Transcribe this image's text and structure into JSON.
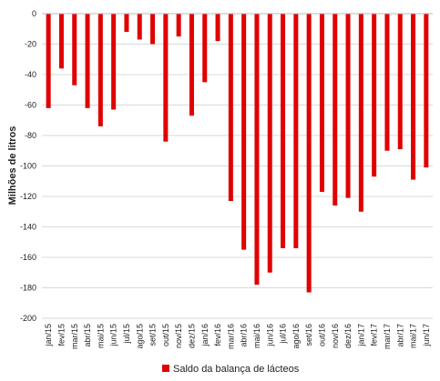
{
  "chart_data": {
    "type": "bar",
    "ylabel": "Milhões de litros",
    "ylim": [
      -200,
      0
    ],
    "yticks": [
      0,
      -20,
      -40,
      -60,
      -80,
      -100,
      -120,
      -140,
      -160,
      -180,
      -200
    ],
    "grid": true,
    "legend_position": "bottom",
    "categories": [
      "jan/15",
      "fev/15",
      "mar/15",
      "abr/15",
      "mai/15",
      "jun/15",
      "jul/15",
      "ago/15",
      "set/15",
      "out/15",
      "nov/15",
      "dez/15",
      "jan/16",
      "fev/16",
      "mar/16",
      "abr/16",
      "mai/16",
      "jun/16",
      "jul/16",
      "ago/16",
      "set/16",
      "out/16",
      "nov/16",
      "dez/16",
      "jan/17",
      "fev/17",
      "mar/17",
      "abr/17",
      "mai/17",
      "jun/17"
    ],
    "series": [
      {
        "name": "Saldo da balança de lácteos",
        "color": "#e00000",
        "values": [
          -62,
          -36,
          -47,
          -62,
          -74,
          -63,
          -12,
          -17,
          -20,
          -84,
          -15,
          -67,
          -45,
          -18,
          -123,
          -155,
          -178,
          -170,
          -154,
          -154,
          -183,
          -117,
          -126,
          -121,
          -130,
          -107,
          -90,
          -89,
          -109,
          -101
        ]
      }
    ]
  }
}
